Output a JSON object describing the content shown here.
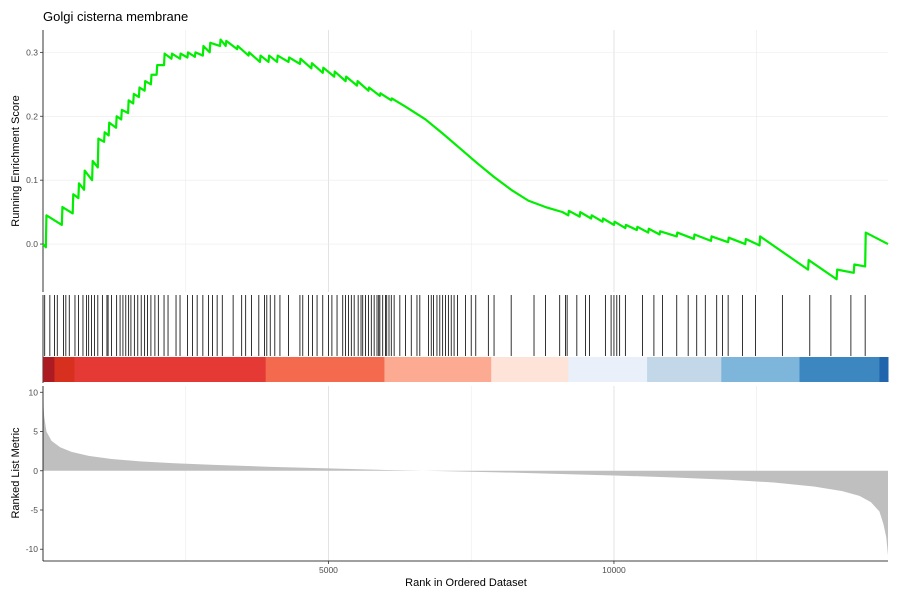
{
  "chart_data": {
    "type": "line",
    "title": "Golgi cisterna membrane",
    "xlabel": "Rank in Ordered Dataset",
    "xlim": [
      0,
      14800
    ],
    "x_ticks": [
      5000,
      10000
    ],
    "grid": "vertical major and minor lines",
    "es_panel": {
      "ylabel": "Running Enrichment Score",
      "ylim": [
        -0.075,
        0.335
      ],
      "y_ticks": [
        0.0,
        0.1,
        0.2,
        0.3
      ],
      "line_color": "#00ee00",
      "x": [
        0,
        50,
        60,
        330,
        340,
        520,
        530,
        620,
        630,
        720,
        730,
        860,
        870,
        960,
        970,
        1070,
        1080,
        1150,
        1160,
        1280,
        1290,
        1370,
        1380,
        1490,
        1500,
        1580,
        1590,
        1680,
        1690,
        1780,
        1790,
        1890,
        1900,
        1990,
        2000,
        2120,
        2130,
        2250,
        2260,
        2400,
        2410,
        2530,
        2540,
        2660,
        2670,
        2800,
        2810,
        2920,
        2930,
        3100,
        3110,
        3200,
        3210,
        3400,
        3410,
        3600,
        3610,
        3800,
        3810,
        3950,
        3960,
        4100,
        4110,
        4300,
        4310,
        4500,
        4510,
        4700,
        4710,
        4900,
        4910,
        5100,
        5110,
        5300,
        5310,
        5500,
        5510,
        5700,
        5710,
        5900,
        5910,
        6100,
        6110,
        6350,
        6700,
        7000,
        7300,
        7600,
        7900,
        8200,
        8500,
        8800,
        9100,
        9200,
        9210,
        9400,
        9410,
        9600,
        9610,
        9800,
        9810,
        10000,
        10010,
        10200,
        10210,
        10400,
        10410,
        10600,
        10610,
        10800,
        10810,
        11100,
        11110,
        11400,
        11410,
        11700,
        11710,
        12000,
        12010,
        12300,
        12310,
        12550,
        12560,
        13400,
        13410,
        13900,
        13910,
        14200,
        14210,
        14400,
        14410,
        14800
      ],
      "y": [
        0.0,
        -0.005,
        0.045,
        0.03,
        0.058,
        0.048,
        0.078,
        0.072,
        0.095,
        0.085,
        0.115,
        0.1,
        0.13,
        0.12,
        0.165,
        0.16,
        0.175,
        0.17,
        0.19,
        0.182,
        0.2,
        0.195,
        0.21,
        0.205,
        0.225,
        0.22,
        0.235,
        0.23,
        0.245,
        0.24,
        0.255,
        0.25,
        0.265,
        0.265,
        0.28,
        0.28,
        0.298,
        0.29,
        0.298,
        0.29,
        0.298,
        0.292,
        0.3,
        0.293,
        0.3,
        0.295,
        0.31,
        0.3,
        0.315,
        0.31,
        0.32,
        0.31,
        0.318,
        0.305,
        0.31,
        0.295,
        0.3,
        0.285,
        0.295,
        0.285,
        0.295,
        0.285,
        0.295,
        0.285,
        0.292,
        0.282,
        0.29,
        0.275,
        0.283,
        0.268,
        0.276,
        0.262,
        0.27,
        0.255,
        0.262,
        0.248,
        0.255,
        0.24,
        0.245,
        0.232,
        0.236,
        0.225,
        0.228,
        0.215,
        0.195,
        0.173,
        0.15,
        0.127,
        0.105,
        0.085,
        0.068,
        0.058,
        0.05,
        0.045,
        0.052,
        0.043,
        0.05,
        0.04,
        0.045,
        0.035,
        0.04,
        0.03,
        0.035,
        0.025,
        0.03,
        0.022,
        0.027,
        0.018,
        0.024,
        0.015,
        0.02,
        0.012,
        0.018,
        0.008,
        0.015,
        0.005,
        0.012,
        0.003,
        0.01,
        0.0,
        0.008,
        -0.002,
        0.012,
        -0.04,
        -0.025,
        -0.055,
        -0.04,
        -0.045,
        -0.032,
        -0.035,
        0.018,
        0.0
      ]
    },
    "hits_panel": {
      "hit_ranks": [
        30,
        120,
        200,
        250,
        360,
        400,
        460,
        560,
        620,
        700,
        760,
        800,
        850,
        900,
        960,
        1040,
        1120,
        1140,
        1200,
        1290,
        1350,
        1400,
        1450,
        1500,
        1540,
        1600,
        1660,
        1720,
        1780,
        1830,
        1890,
        1960,
        2020,
        2120,
        2190,
        2330,
        2400,
        2530,
        2620,
        2700,
        2800,
        2900,
        2970,
        3050,
        3140,
        3330,
        3480,
        3550,
        3650,
        3780,
        3880,
        3920,
        3980,
        4060,
        4150,
        4300,
        4500,
        4550,
        4650,
        4720,
        4800,
        4900,
        5000,
        5060,
        5150,
        5250,
        5300,
        5350,
        5400,
        5450,
        5520,
        5570,
        5600,
        5650,
        5700,
        5750,
        5800,
        5850,
        5880,
        5900,
        5950,
        6000,
        6020,
        6060,
        6100,
        6150,
        6250,
        6350,
        6450,
        6550,
        6600,
        6750,
        6800,
        6840,
        6900,
        6950,
        7000,
        7050,
        7100,
        7150,
        7200,
        7260,
        7400,
        7500,
        7580,
        7800,
        7900,
        8200,
        8600,
        8800,
        9050,
        9150,
        9180,
        9350,
        9500,
        9570,
        9850,
        9950,
        10000,
        10050,
        10100,
        10200,
        10500,
        10700,
        10850,
        11100,
        11300,
        11450,
        11600,
        11800,
        11900,
        12000,
        12250,
        12480,
        12950,
        13430,
        13800,
        14150,
        14400
      ]
    },
    "color_bar": {
      "segments": [
        {
          "end": 200,
          "color": "#ab1b21"
        },
        {
          "end": 550,
          "color": "#d7301f"
        },
        {
          "end": 3900,
          "color": "#e53935"
        },
        {
          "end": 5980,
          "color": "#f46a4e"
        },
        {
          "end": 7850,
          "color": "#fcab92"
        },
        {
          "end": 9200,
          "color": "#fde3d8"
        },
        {
          "end": 10580,
          "color": "#eaf0fa"
        },
        {
          "end": 11880,
          "color": "#c2d8e8"
        },
        {
          "end": 13250,
          "color": "#7db6da"
        },
        {
          "end": 14650,
          "color": "#3d87c0"
        },
        {
          "end": 14800,
          "color": "#2166ac"
        }
      ]
    },
    "ranked_panel": {
      "ylabel": "Ranked List Metric",
      "ylim": [
        -11.5,
        10.8
      ],
      "y_ticks": [
        10,
        5,
        0,
        -5,
        -10
      ],
      "fill_color": "#bfbfbf",
      "x": [
        0,
        20,
        60,
        150,
        300,
        500,
        800,
        1200,
        1700,
        2300,
        3000,
        4000,
        5000,
        6000,
        7000,
        8000,
        9000,
        10000,
        11000,
        12000,
        12800,
        13500,
        14000,
        14300,
        14500,
        14650,
        14720,
        14770,
        14800
      ],
      "y": [
        9.2,
        7.0,
        5.0,
        3.8,
        3.0,
        2.4,
        1.9,
        1.5,
        1.2,
        0.95,
        0.75,
        0.5,
        0.3,
        0.1,
        -0.05,
        -0.2,
        -0.4,
        -0.6,
        -0.85,
        -1.15,
        -1.5,
        -2.0,
        -2.6,
        -3.2,
        -4.0,
        -5.2,
        -6.8,
        -8.5,
        -10.8
      ]
    }
  }
}
